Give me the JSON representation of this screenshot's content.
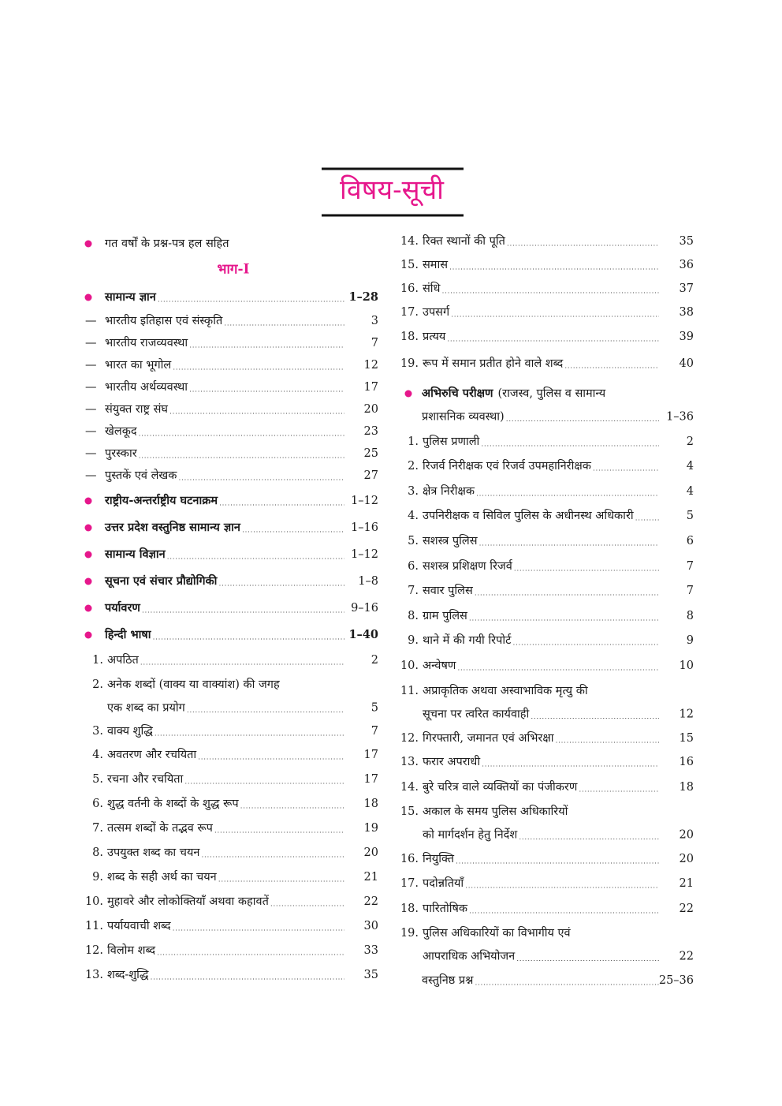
{
  "title": "विषय-सूची",
  "left_column": {
    "part": "भाग-I",
    "entries": [
      {
        "bullet": true,
        "lines": [
          "गत वर्षों के प्रश्न-पत्र हल सहित"
        ]
      },
      {
        "bullet": true,
        "bold": true,
        "lines": [
          "सामान्य ज्ञान"
        ],
        "page": "1–28"
      },
      {
        "num": "—",
        "lines": [
          "भारतीय इतिहास एवं संस्कृति"
        ],
        "page": "3"
      },
      {
        "num": "—",
        "lines": [
          "भारतीय राजव्यवस्था"
        ],
        "page": "7"
      },
      {
        "num": "—",
        "lines": [
          "भारत का भूगोल"
        ],
        "page": "12"
      },
      {
        "num": "—",
        "lines": [
          "भारतीय अर्थव्यवस्था"
        ],
        "page": "17"
      },
      {
        "num": "—",
        "lines": [
          "संयुक्त राष्ट्र संघ"
        ],
        "page": "20"
      },
      {
        "num": "—",
        "lines": [
          "खेलकूद"
        ],
        "page": "23"
      },
      {
        "num": "—",
        "lines": [
          "पुरस्कार"
        ],
        "page": "25"
      },
      {
        "num": "—",
        "lines": [
          "पुस्तकें एवं लेखक"
        ],
        "page": "27"
      },
      {
        "bullet": true,
        "bold": true,
        "lines": [
          "राष्ट्रीय-अन्तर्राष्ट्रीय घटनाक्रम"
        ],
        "page": "1–12"
      },
      {
        "bullet": true,
        "bold": true,
        "lines": [
          "उत्तर प्रदेश वस्तुनिष्ठ सामान्य ज्ञान"
        ],
        "page": "1–16"
      },
      {
        "bullet": true,
        "bold": true,
        "lines": [
          "सामान्य विज्ञान"
        ],
        "page": "1–12"
      },
      {
        "bullet": true,
        "bold": true,
        "lines": [
          "सूचना एवं संचार प्रौद्योगिकी"
        ],
        "page": "1–8"
      },
      {
        "bullet": true,
        "bold": true,
        "lines": [
          "पर्यावरण"
        ],
        "page": "9–16"
      },
      {
        "bullet": true,
        "bold": true,
        "lines": [
          "हिन्दी भाषा"
        ],
        "page": "1–40"
      },
      {
        "num": "1.",
        "lines": [
          "अपठित"
        ],
        "page": "2"
      },
      {
        "num": "2.",
        "lines": [
          "अनेक शब्दों (वाक्य या वाक्यांश) की जगह",
          "एक शब्द का प्रयोग"
        ],
        "page": "5"
      },
      {
        "num": "3.",
        "lines": [
          "वाक्य शुद्धि"
        ],
        "page": "7"
      },
      {
        "num": "4.",
        "lines": [
          "अवतरण और रचयिता"
        ],
        "page": "17"
      },
      {
        "num": "5.",
        "lines": [
          "रचना और रचयिता"
        ],
        "page": "17"
      },
      {
        "num": "6.",
        "lines": [
          "शुद्ध वर्तनी के शब्दों के शुद्ध रूप"
        ],
        "page": "18"
      },
      {
        "num": "7.",
        "lines": [
          "तत्सम शब्दों के तद्भव रूप"
        ],
        "page": "19"
      },
      {
        "num": "8.",
        "lines": [
          "उपयुक्त शब्द का चयन"
        ],
        "page": "20"
      },
      {
        "num": "9.",
        "lines": [
          "शब्द के सही अर्थ का चयन"
        ],
        "page": "21"
      },
      {
        "num": "10.",
        "lines": [
          "मुहावरे और लोकोक्तियाँ अथवा कहावतें"
        ],
        "page": "22"
      },
      {
        "num": "11.",
        "lines": [
          "पर्यायवाची शब्द"
        ],
        "page": "30"
      },
      {
        "num": "12.",
        "lines": [
          "विलोम शब्द"
        ],
        "page": "33"
      },
      {
        "num": "13.",
        "lines": [
          "शब्द-शुद्धि"
        ],
        "page": "35"
      }
    ]
  },
  "right_column": {
    "entries": [
      {
        "num": "14.",
        "lines": [
          "रिक्त स्थानों की पूति"
        ],
        "page": "35"
      },
      {
        "num": "15.",
        "lines": [
          "समास"
        ],
        "page": "36"
      },
      {
        "num": "16.",
        "lines": [
          "संधि"
        ],
        "page": "37"
      },
      {
        "num": "17.",
        "lines": [
          "उपसर्ग"
        ],
        "page": "38"
      },
      {
        "num": "18.",
        "lines": [
          "प्रत्यय"
        ],
        "page": "39"
      },
      {
        "num": "19.",
        "lines": [
          "रूप में समान प्रतीत होने वाले शब्द"
        ],
        "page": "40"
      },
      {
        "bullet": true,
        "bold_text": "अभिरुचि परीक्षण",
        "lines": [
          "(राजस्व, पुलिस व सामान्य",
          "प्रशासनिक व्यवस्था)"
        ],
        "page": "1–36"
      },
      {
        "num": "1.",
        "lines": [
          "पुलिस प्रणाली"
        ],
        "page": "2"
      },
      {
        "num": "2.",
        "lines": [
          "रिजर्व निरीक्षक एवं रिजर्व उपमहानिरीक्षक"
        ],
        "page": "4"
      },
      {
        "num": "3.",
        "lines": [
          "क्षेत्र निरीक्षक"
        ],
        "page": "4"
      },
      {
        "num": "4.",
        "lines": [
          "उपनिरीक्षक व सिविल पुलिस के अधीनस्थ अधिकारी"
        ],
        "page": "5"
      },
      {
        "num": "5.",
        "lines": [
          "सशस्त्र पुलिस"
        ],
        "page": "6"
      },
      {
        "num": "6.",
        "lines": [
          "सशस्त्र प्रशिक्षण रिजर्व"
        ],
        "page": "7"
      },
      {
        "num": "7.",
        "lines": [
          "सवार पुलिस"
        ],
        "page": "7"
      },
      {
        "num": "8.",
        "lines": [
          "ग्राम पुलिस"
        ],
        "page": "8"
      },
      {
        "num": "9.",
        "lines": [
          "थाने में की गयी रिपोर्ट"
        ],
        "page": "9"
      },
      {
        "num": "10.",
        "lines": [
          "अन्वेषण"
        ],
        "page": "10"
      },
      {
        "num": "11.",
        "lines": [
          "अप्राकृतिक अथवा अस्वाभाविक मृत्यु की",
          "सूचना पर त्वरित कार्यवाही"
        ],
        "page": "12"
      },
      {
        "num": "12.",
        "lines": [
          "गिरफ्तारी, जमानत एवं अभिरक्षा"
        ],
        "page": "15"
      },
      {
        "num": "13.",
        "lines": [
          "फरार अपराधी"
        ],
        "page": "16"
      },
      {
        "num": "14.",
        "lines": [
          "बुरे चरित्र वाले व्यक्तियों का पंजीकरण"
        ],
        "page": "18"
      },
      {
        "num": "15.",
        "lines": [
          "अकाल के समय पुलिस अधिकारियों",
          "को मार्गदर्शन हेतु निर्देश"
        ],
        "page": "20"
      },
      {
        "num": "16.",
        "lines": [
          "नियुक्ति"
        ],
        "page": "20"
      },
      {
        "num": "17.",
        "lines": [
          "पदोन्नतियाँ"
        ],
        "page": "21"
      },
      {
        "num": "18.",
        "lines": [
          "पारितोषिक"
        ],
        "page": "22"
      },
      {
        "num": "19.",
        "lines": [
          "पुलिस अधिकारियों का विभागीय एवं",
          "आपराधिक अभियोजन"
        ],
        "page": "22"
      },
      {
        "lines": [
          "वस्तुनिष्ठ प्रश्न"
        ],
        "page": "25–36"
      }
    ]
  }
}
